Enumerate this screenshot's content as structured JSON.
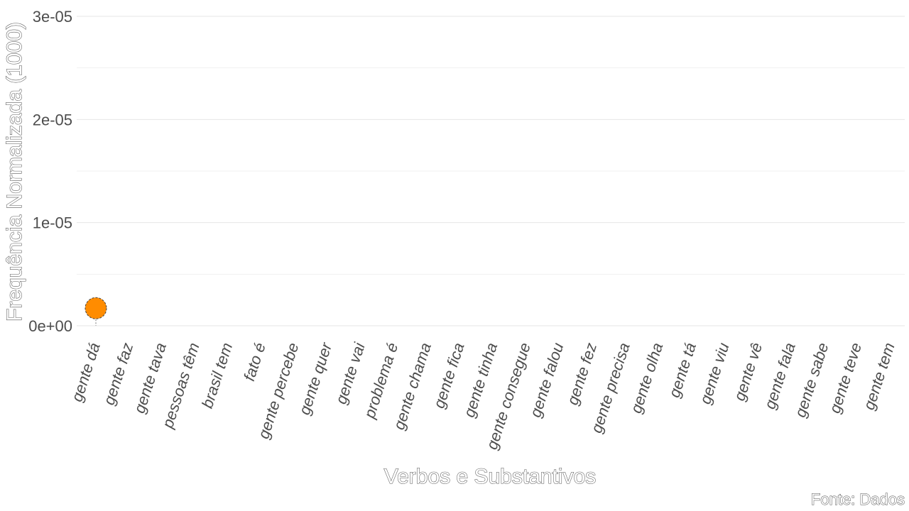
{
  "chart_data": {
    "type": "scatter",
    "title": "",
    "xlabel": "Verbos e Substantivos",
    "ylabel": "Frequência Normalizada (1000)",
    "caption": "Fonte: Dados",
    "categories": [
      "gente dá",
      "gente faz",
      "gente tava",
      "pessoas têm",
      "brasil tem",
      "fato é",
      "gente percebe",
      "gente quer",
      "gente vai",
      "problema é",
      "gente chama",
      "gente fica",
      "gente tinha",
      "gente consegue",
      "gente falou",
      "gente fez",
      "gente precisa",
      "gente olha",
      "gente tá",
      "gente viu",
      "gente vê",
      "gente fala",
      "gente sabe",
      "gente teve",
      "gente tem"
    ],
    "y_ticks": [
      "0e+00",
      "1e-05",
      "2e-05",
      "3e-05"
    ],
    "y_tick_values": [
      0,
      1e-05,
      2e-05,
      3e-05
    ],
    "ylim": [
      0,
      3e-05
    ],
    "grid": true,
    "series": [
      {
        "points": [
          {
            "x": "gente dá",
            "y": 1.7e-06
          }
        ],
        "color": "#ff8c00"
      }
    ]
  }
}
